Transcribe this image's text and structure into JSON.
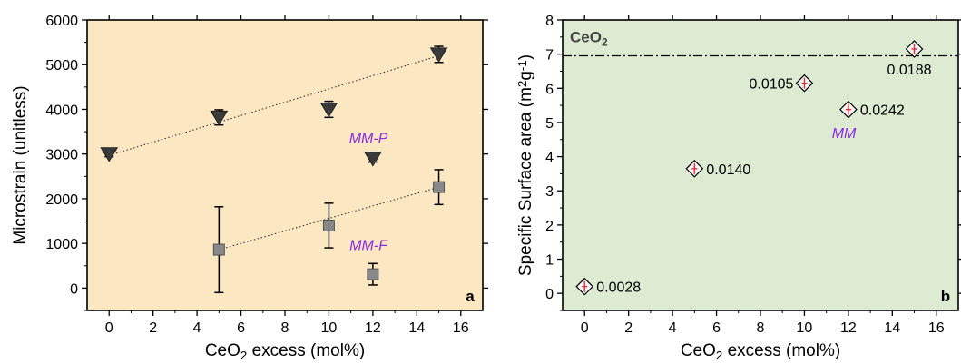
{
  "chart_data": [
    {
      "type": "scatter",
      "panel_label": "a",
      "background": "#fbe7c2",
      "xlabel": "CeO₂ excess (mol%)",
      "ylabel": "Microstrain (unitless)",
      "xlim": [
        -1,
        17
      ],
      "ylim": [
        -500,
        6000
      ],
      "xticks": [
        0,
        2,
        4,
        6,
        8,
        10,
        12,
        14,
        16
      ],
      "yticks": [
        0,
        1000,
        2000,
        3000,
        4000,
        5000,
        6000
      ],
      "series": [
        {
          "name": "MM-P",
          "marker": "triangle-down",
          "color": "#3a3a3a",
          "points": [
            {
              "x": 0,
              "y": 3000,
              "err": 60
            },
            {
              "x": 5,
              "y": 3820,
              "err": 170
            },
            {
              "x": 10,
              "y": 4000,
              "err": 180
            },
            {
              "x": 12,
              "y": 2900,
              "err": 80
            },
            {
              "x": 15,
              "y": 5230,
              "err": 180
            }
          ],
          "trend": {
            "x": [
              0,
              15
            ],
            "y": [
              2970,
              5200
            ]
          }
        },
        {
          "name": "MM-F",
          "marker": "square",
          "color": "#888888",
          "points": [
            {
              "x": 5,
              "y": 860,
              "err": 960
            },
            {
              "x": 10,
              "y": 1400,
              "err": 500
            },
            {
              "x": 12,
              "y": 310,
              "err": 240
            },
            {
              "x": 15,
              "y": 2260,
              "err": 390
            }
          ],
          "trend": {
            "x": [
              5,
              15
            ],
            "y": [
              860,
              2260
            ]
          }
        }
      ],
      "series_labels": [
        {
          "text": "MM-P",
          "x": 11.8,
          "y": 3250
        },
        {
          "text": "MM-F",
          "x": 11.8,
          "y": 850
        }
      ]
    },
    {
      "type": "scatter",
      "panel_label": "b",
      "background": "#dcebd1",
      "xlabel": "CeO₂ excess (mol%)",
      "ylabel": "Specific Surface area (m²g⁻¹)",
      "xlim": [
        -1,
        17
      ],
      "ylim": [
        -0.5,
        8
      ],
      "xticks": [
        0,
        2,
        4,
        6,
        8,
        10,
        12,
        14,
        16
      ],
      "yticks": [
        0,
        1,
        2,
        3,
        4,
        5,
        6,
        7,
        8
      ],
      "reference_line": {
        "label": "CeO₂",
        "y": 6.95
      },
      "series": [
        {
          "name": "MM",
          "marker": "diamond",
          "color": "#000000",
          "error_color": "#e0303a",
          "points": [
            {
              "x": 0,
              "y": 0.2,
              "label": "0.0028"
            },
            {
              "x": 5,
              "y": 3.65,
              "label": "0.0140"
            },
            {
              "x": 10,
              "y": 6.15,
              "label": "0.0105"
            },
            {
              "x": 12,
              "y": 5.38,
              "label": "0.0242"
            },
            {
              "x": 15,
              "y": 7.15,
              "label": "0.0188"
            }
          ]
        }
      ],
      "series_labels": [
        {
          "text": "MM",
          "x": 11.8,
          "y": 4.55
        }
      ]
    }
  ]
}
